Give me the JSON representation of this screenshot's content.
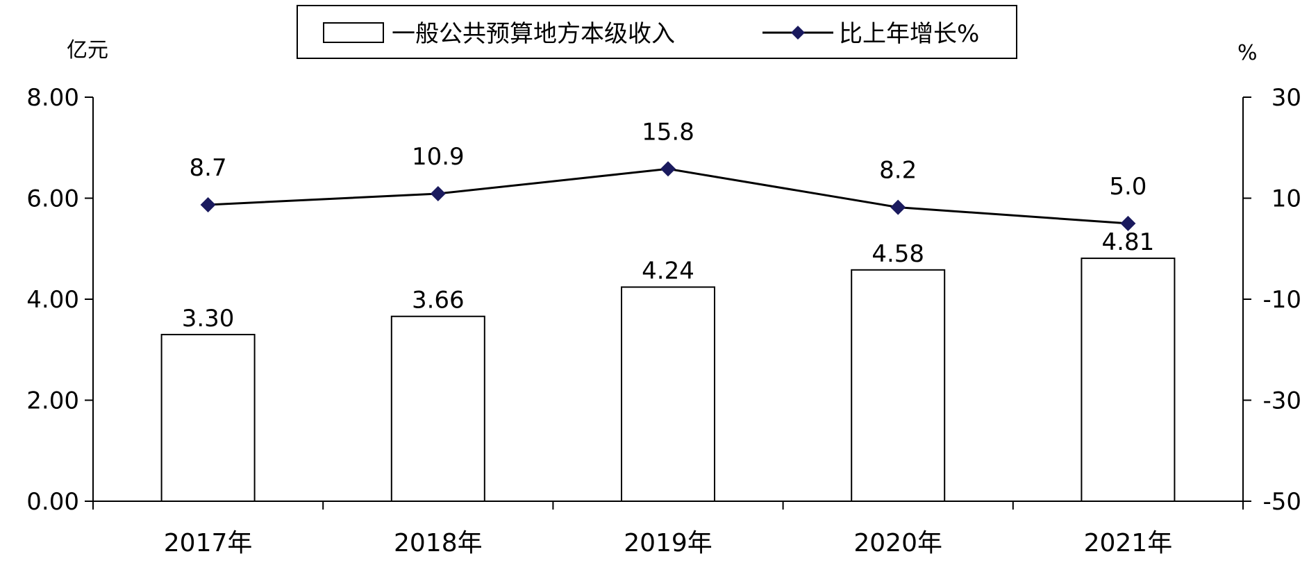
{
  "chart_data": {
    "type": "bar",
    "categories": [
      "2017年",
      "2018年",
      "2019年",
      "2020年",
      "2021年"
    ],
    "series": [
      {
        "name": "一般公共预算地方本级收入",
        "type": "bar",
        "axis": "left",
        "values": [
          3.3,
          3.66,
          4.24,
          4.58,
          4.81
        ],
        "labels": [
          "3.30",
          "3.66",
          "4.24",
          "4.58",
          "4.81"
        ]
      },
      {
        "name": "比上年增长%",
        "type": "line",
        "axis": "right",
        "values": [
          8.7,
          10.9,
          15.8,
          8.2,
          5.0
        ],
        "labels": [
          "8.7",
          "10.9",
          "15.8",
          "8.2",
          "5.0"
        ]
      }
    ],
    "y_left": {
      "unit": "亿元",
      "min": 0,
      "max": 8,
      "ticks": [
        0,
        2,
        4,
        6,
        8
      ],
      "tick_labels": [
        "0.00",
        "2.00",
        "4.00",
        "6.00",
        "8.00"
      ]
    },
    "y_right": {
      "unit": "%",
      "min": -50,
      "max": 30,
      "ticks": [
        -50,
        -30,
        -10,
        10,
        30
      ],
      "tick_labels": [
        "-50",
        "-30",
        "-10",
        "10",
        "30"
      ]
    },
    "legend": "top",
    "grid": false,
    "colors": {
      "bar_fill": "#ffffff",
      "bar_stroke": "#000000",
      "line": "#000000",
      "marker": "#1a1a5e"
    }
  }
}
